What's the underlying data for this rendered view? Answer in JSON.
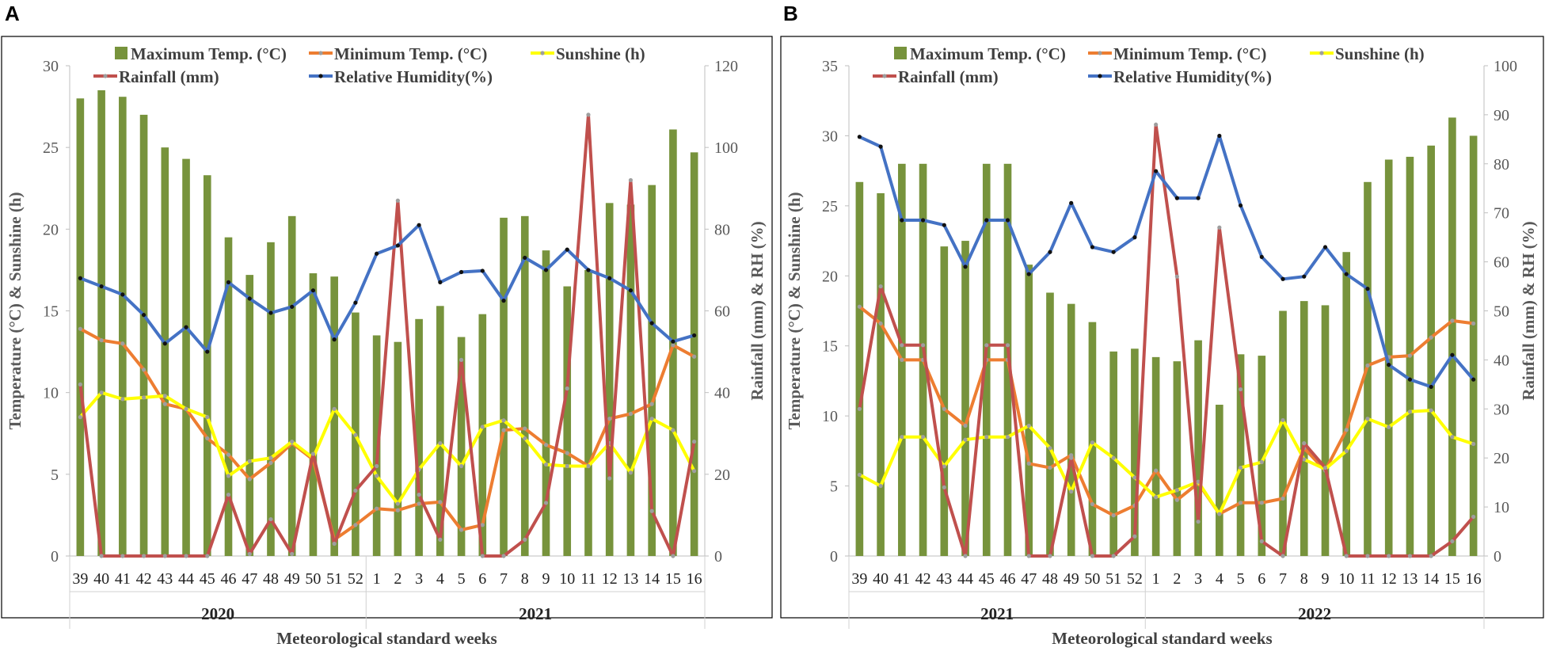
{
  "colors": {
    "max_temp": "#77933C",
    "min_temp": "#ED7D31",
    "sunshine": "#FFFF00",
    "rainfall": "#C0504D",
    "rh": "#4472C4",
    "axis_text": "#595959",
    "frame": "#000000"
  },
  "chart_data": [
    {
      "panel": "A",
      "type": "bar+line",
      "legend": [
        "Maximum Temp. (°C)",
        "Minimum Temp. (°C)",
        "Sunshine (h)",
        "Rainfall (mm)",
        "Relative Humidity(%)"
      ],
      "ylabel_left": "Temperature (°C) & Sunshine (h)",
      "ylabel_right": "Rainfall (mm) & RH (%)",
      "xlabel": "Meteorological standard weeks",
      "ylim_left": [
        0,
        30
      ],
      "yticks_left": [
        0,
        5,
        10,
        15,
        20,
        25,
        30
      ],
      "ylim_right": [
        0,
        120
      ],
      "yticks_right": [
        0,
        20,
        40,
        60,
        80,
        100,
        120
      ],
      "weeks": [
        "39",
        "40",
        "41",
        "42",
        "43",
        "44",
        "45",
        "46",
        "47",
        "48",
        "49",
        "50",
        "51",
        "52",
        "1",
        "2",
        "3",
        "4",
        "5",
        "6",
        "7",
        "8",
        "9",
        "10",
        "11",
        "12",
        "13",
        "14",
        "15",
        "16"
      ],
      "year_groups": [
        {
          "label": "2020",
          "count": 14
        },
        {
          "label": "2021",
          "count": 16
        }
      ],
      "series": [
        {
          "name": "Maximum Temp. (°C)",
          "axis": "left",
          "kind": "bar",
          "values": [
            28.0,
            28.5,
            28.1,
            27.0,
            25.0,
            24.3,
            23.3,
            19.5,
            17.2,
            19.2,
            20.8,
            17.3,
            17.1,
            14.9,
            13.5,
            13.1,
            14.5,
            15.3,
            13.4,
            14.8,
            20.7,
            20.8,
            18.7,
            16.5,
            17.5,
            21.6,
            21.5,
            22.7,
            26.1,
            24.7
          ]
        },
        {
          "name": "Minimum Temp. (°C)",
          "axis": "left",
          "kind": "line",
          "values": [
            13.9,
            13.2,
            13.0,
            11.4,
            9.3,
            9.0,
            7.2,
            6.2,
            4.7,
            5.7,
            6.9,
            5.9,
            1.0,
            1.9,
            2.9,
            2.8,
            3.2,
            3.3,
            1.6,
            1.9,
            7.7,
            7.8,
            6.8,
            6.3,
            5.5,
            8.4,
            8.7,
            9.3,
            12.9,
            12.2
          ]
        },
        {
          "name": "Sunshine (h)",
          "axis": "left",
          "kind": "line",
          "values": [
            8.5,
            10.0,
            9.6,
            9.7,
            9.8,
            9.0,
            8.5,
            4.9,
            5.8,
            6.0,
            7.0,
            6.0,
            9.0,
            7.4,
            4.9,
            3.2,
            5.3,
            6.9,
            5.5,
            7.9,
            8.3,
            7.2,
            5.6,
            5.5,
            5.5,
            6.9,
            5.1,
            8.4,
            7.7,
            5.2
          ]
        },
        {
          "name": "Rainfall (mm)",
          "axis": "right",
          "kind": "line",
          "values": [
            42,
            0,
            0,
            0,
            0,
            0,
            0,
            15,
            0.5,
            9,
            0.5,
            25,
            3,
            16,
            22,
            87,
            15,
            4,
            48,
            0,
            0,
            4,
            13,
            41,
            108,
            19,
            92,
            11,
            0,
            28
          ]
        },
        {
          "name": "Relative Humidity(%)",
          "axis": "right",
          "kind": "line",
          "values": [
            68,
            66,
            64,
            59,
            52,
            56,
            50,
            67,
            63,
            59.5,
            61,
            65,
            53,
            62,
            74,
            76,
            81,
            67,
            69.5,
            69.8,
            62.5,
            73,
            70,
            75,
            70,
            68,
            65,
            57,
            52.5,
            54
          ]
        }
      ]
    },
    {
      "panel": "B",
      "type": "bar+line",
      "legend": [
        "Maximum Temp. (°C)",
        "Minimum Temp. (°C)",
        "Sunshine (h)",
        "Rainfall (mm)",
        "Relative Humidity(%)"
      ],
      "ylabel_left": "Temperature (°C) & Sunshine (h)",
      "ylabel_right": "Rainfall (mm) & RH (%)",
      "xlabel": "Meteorological standard weeks",
      "ylim_left": [
        0,
        35
      ],
      "yticks_left": [
        0,
        5,
        10,
        15,
        20,
        25,
        30,
        35
      ],
      "ylim_right": [
        0,
        100
      ],
      "yticks_right": [
        0,
        10,
        20,
        30,
        40,
        50,
        60,
        70,
        80,
        90,
        100
      ],
      "weeks": [
        "39",
        "40",
        "41",
        "42",
        "43",
        "44",
        "45",
        "46",
        "47",
        "48",
        "49",
        "50",
        "51",
        "52",
        "1",
        "2",
        "3",
        "4",
        "5",
        "6",
        "7",
        "8",
        "9",
        "10",
        "11",
        "12",
        "13",
        "14",
        "15",
        "16"
      ],
      "year_groups": [
        {
          "label": "2021",
          "count": 14
        },
        {
          "label": "2022",
          "count": 16
        }
      ],
      "series": [
        {
          "name": "Maximum Temp. (°C)",
          "axis": "left",
          "kind": "bar",
          "values": [
            26.7,
            25.9,
            28.0,
            28.0,
            22.1,
            22.5,
            28.0,
            28.0,
            20.8,
            18.8,
            18.0,
            16.7,
            14.6,
            14.8,
            14.2,
            13.9,
            15.4,
            10.8,
            14.4,
            14.3,
            17.5,
            18.2,
            17.9,
            21.7,
            26.7,
            28.3,
            28.5,
            29.3,
            31.3,
            30.0
          ]
        },
        {
          "name": "Minimum Temp. (°C)",
          "axis": "left",
          "kind": "line",
          "values": [
            17.8,
            16.6,
            14.0,
            14.0,
            10.5,
            9.3,
            14.0,
            14.0,
            6.6,
            6.3,
            7.2,
            3.7,
            2.9,
            3.6,
            6.1,
            4.0,
            5.2,
            3.0,
            3.8,
            3.8,
            4.1,
            7.7,
            6.1,
            9.0,
            13.6,
            14.2,
            14.3,
            15.6,
            16.8,
            16.6
          ]
        },
        {
          "name": "Sunshine (h)",
          "axis": "left",
          "kind": "line",
          "values": [
            5.8,
            5.0,
            8.5,
            8.5,
            6.4,
            8.3,
            8.5,
            8.5,
            9.3,
            7.7,
            4.6,
            8.1,
            7.0,
            5.6,
            4.2,
            4.7,
            5.3,
            3.0,
            6.3,
            6.7,
            9.7,
            6.9,
            6.2,
            7.5,
            9.8,
            9.2,
            10.3,
            10.4,
            8.5,
            8.0
          ]
        },
        {
          "name": "Rainfall (mm)",
          "axis": "right",
          "kind": "line",
          "values": [
            30,
            55,
            43,
            43,
            14,
            0,
            43,
            43,
            0,
            0,
            20,
            0,
            0,
            4,
            88,
            57,
            7,
            67,
            34,
            3,
            0,
            23,
            18,
            0,
            0,
            0,
            0,
            0,
            3,
            8
          ]
        },
        {
          "name": "Relative Humidity(%)",
          "axis": "right",
          "kind": "line",
          "values": [
            85.5,
            83.5,
            68.5,
            68.5,
            67.5,
            59,
            68.5,
            68.5,
            57.5,
            62,
            72,
            63,
            62,
            65,
            78.5,
            73,
            73,
            85.7,
            71.5,
            61,
            56.5,
            57,
            63,
            57.5,
            54.5,
            39,
            36,
            34.5,
            41,
            36
          ]
        }
      ]
    }
  ]
}
